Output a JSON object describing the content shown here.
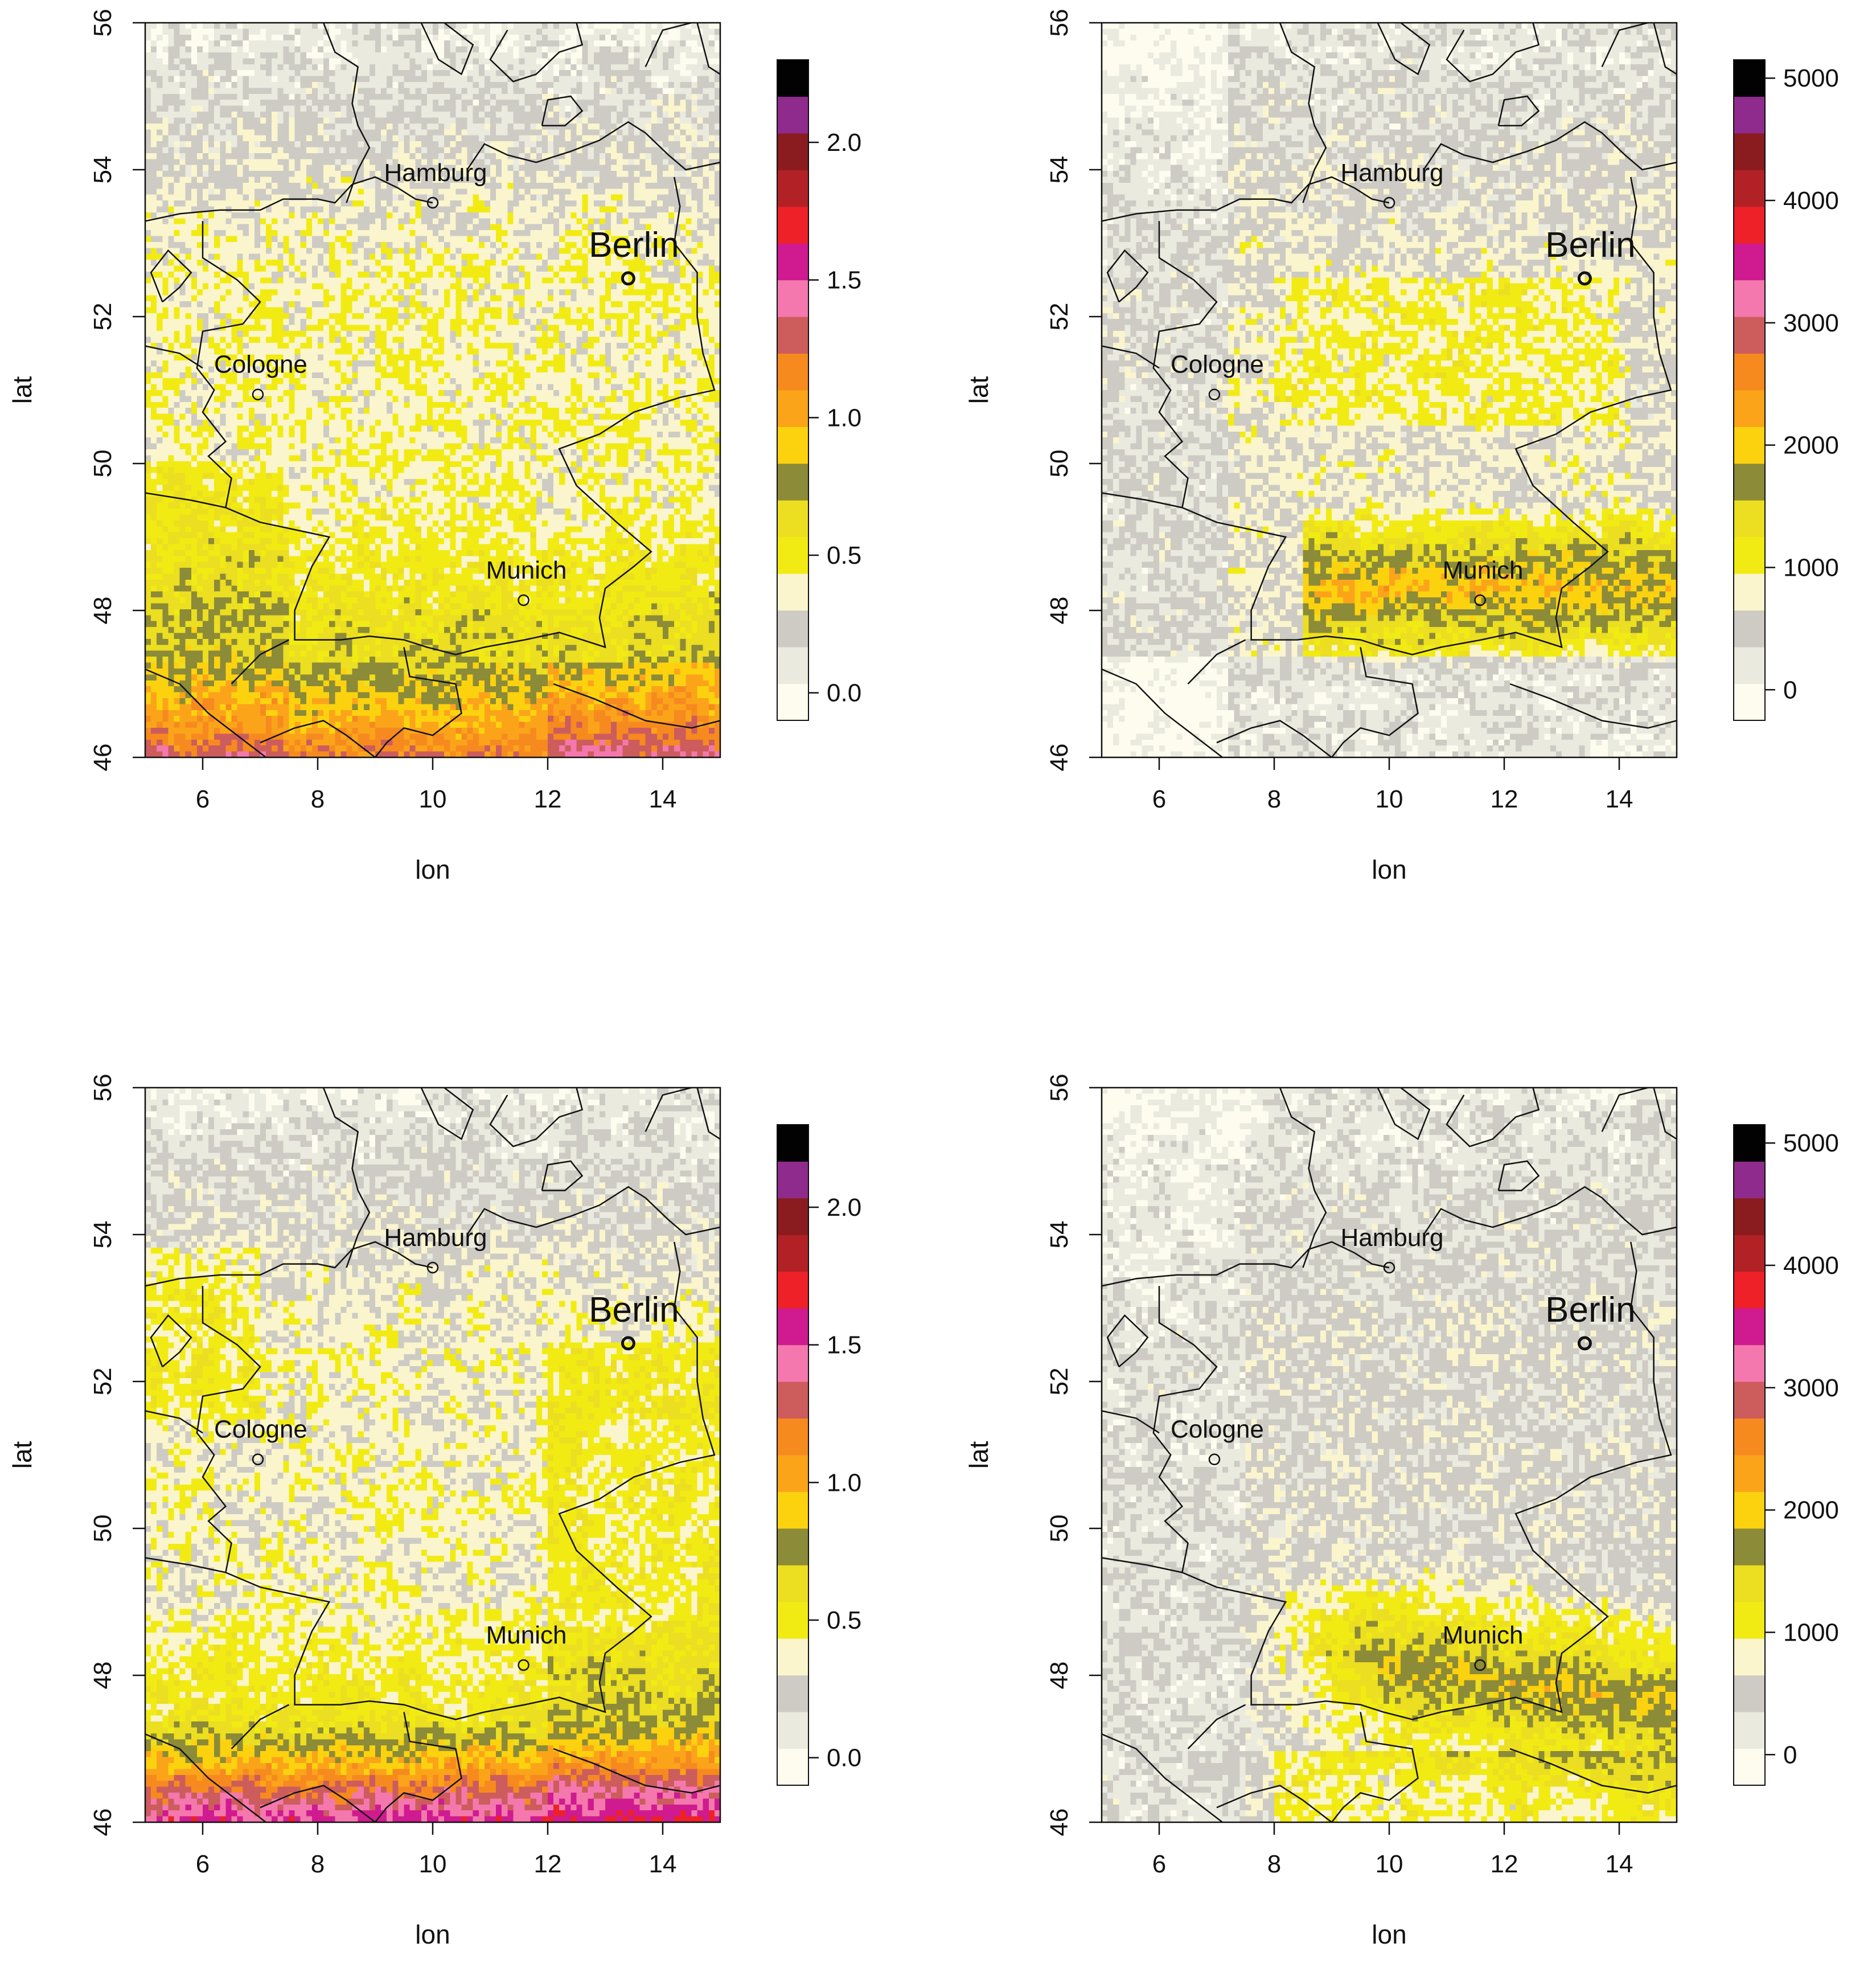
{
  "chart_data": [
    {
      "type": "heatmap",
      "title": "",
      "xlabel": "lon",
      "ylabel": "lat",
      "xlim": [
        5,
        15
      ],
      "ylim": [
        46,
        56
      ],
      "x_ticks": [
        "6",
        "8",
        "10",
        "12",
        "14"
      ],
      "y_ticks": [
        "46",
        "48",
        "50",
        "52",
        "54",
        "56"
      ],
      "colorbar": {
        "min": -0.1,
        "max": 2.3,
        "ticks": [
          0.0,
          0.5,
          1.0,
          1.5,
          2.0
        ],
        "tick_labels": [
          "0.0",
          "0.5",
          "1.0",
          "1.5",
          "2.0"
        ]
      },
      "cities": [
        {
          "name": "Hamburg",
          "lon": 10.0,
          "lat": 53.55
        },
        {
          "name": "Berlin",
          "lon": 13.4,
          "lat": 52.52
        },
        {
          "name": "Cologne",
          "lon": 6.96,
          "lat": 50.94
        },
        {
          "name": "Munich",
          "lon": 11.58,
          "lat": 48.14
        }
      ],
      "field_pattern": "alpine-south",
      "note_values_range": [
        0.0,
        2.2
      ]
    },
    {
      "type": "heatmap",
      "title": "",
      "xlabel": "lon",
      "ylabel": "lat",
      "xlim": [
        5,
        15
      ],
      "ylim": [
        46,
        56
      ],
      "x_ticks": [
        "6",
        "8",
        "10",
        "12",
        "14"
      ],
      "y_ticks": [
        "46",
        "48",
        "50",
        "52",
        "54",
        "56"
      ],
      "colorbar": {
        "min": -250,
        "max": 5150,
        "ticks": [
          0,
          1000,
          2000,
          3000,
          4000,
          5000
        ],
        "tick_labels": [
          "0",
          "1000",
          "2000",
          "3000",
          "4000",
          "5000"
        ]
      },
      "cities": [
        {
          "name": "Hamburg",
          "lon": 10.0,
          "lat": 53.55
        },
        {
          "name": "Berlin",
          "lon": 13.4,
          "lat": 52.52
        },
        {
          "name": "Cologne",
          "lon": 6.96,
          "lat": 50.94
        },
        {
          "name": "Munich",
          "lon": 11.58,
          "lat": 48.14
        }
      ],
      "field_pattern": "prealpine-band",
      "note_values_range": [
        0,
        4500
      ]
    },
    {
      "type": "heatmap",
      "title": "",
      "xlabel": "lon",
      "ylabel": "lat",
      "xlim": [
        5,
        15
      ],
      "ylim": [
        46,
        56
      ],
      "x_ticks": [
        "6",
        "8",
        "10",
        "12",
        "14"
      ],
      "y_ticks": [
        "46",
        "48",
        "50",
        "52",
        "54",
        "56"
      ],
      "colorbar": {
        "min": -0.1,
        "max": 2.3,
        "ticks": [
          0.0,
          0.5,
          1.0,
          1.5,
          2.0
        ],
        "tick_labels": [
          "0.0",
          "0.5",
          "1.0",
          "1.5",
          "2.0"
        ]
      },
      "cities": [
        {
          "name": "Hamburg",
          "lon": 10.0,
          "lat": 53.55
        },
        {
          "name": "Berlin",
          "lon": 13.4,
          "lat": 52.52
        },
        {
          "name": "Cologne",
          "lon": 6.96,
          "lat": 50.94
        },
        {
          "name": "Munich",
          "lon": 11.58,
          "lat": 48.14
        }
      ],
      "field_pattern": "alpine-strong",
      "note_values_range": [
        0.0,
        2.3
      ]
    },
    {
      "type": "heatmap",
      "title": "",
      "xlabel": "lon",
      "ylabel": "lat",
      "xlim": [
        5,
        15
      ],
      "ylim": [
        46,
        56
      ],
      "x_ticks": [
        "6",
        "8",
        "10",
        "12",
        "14"
      ],
      "y_ticks": [
        "46",
        "48",
        "50",
        "52",
        "54",
        "56"
      ],
      "colorbar": {
        "min": -250,
        "max": 5150,
        "ticks": [
          0,
          1000,
          2000,
          3000,
          4000,
          5000
        ],
        "tick_labels": [
          "0",
          "1000",
          "2000",
          "3000",
          "4000",
          "5000"
        ]
      },
      "cities": [
        {
          "name": "Hamburg",
          "lon": 10.0,
          "lat": 53.55
        },
        {
          "name": "Berlin",
          "lon": 13.4,
          "lat": 52.52
        },
        {
          "name": "Cologne",
          "lon": 6.96,
          "lat": 50.94
        },
        {
          "name": "Munich",
          "lon": 11.58,
          "lat": 48.14
        }
      ],
      "field_pattern": "southeast-band",
      "note_values_range": [
        0,
        4000
      ]
    }
  ],
  "palette": [
    "#fdfcef",
    "#eaeadf",
    "#cdcbc4",
    "#fbf5ce",
    "#f1eb13",
    "#ecde20",
    "#8c8b37",
    "#fcd20f",
    "#fba41a",
    "#f68a1f",
    "#cd5c5c",
    "#f478ad",
    "#cf1b8f",
    "#ed2127",
    "#b12126",
    "#8a1b1e",
    "#8e2b8c",
    "#020202"
  ]
}
